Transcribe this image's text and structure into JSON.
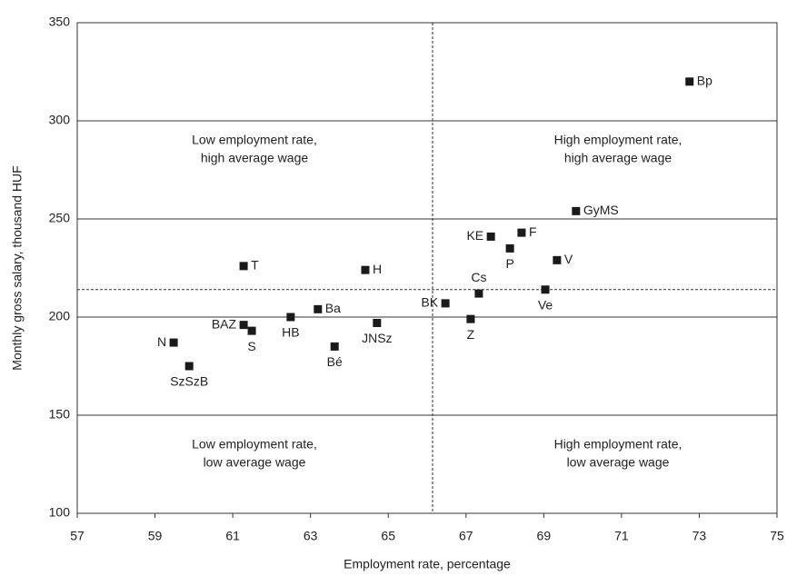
{
  "chart_data": {
    "type": "scatter",
    "x_label": "Employment rate, percentage",
    "y_label": "Monthly gross salary, thousand HUF",
    "point_labels": [
      "Bp",
      "GyMS",
      "KE",
      "F",
      "P",
      "V",
      "Cs",
      "Ve",
      "Z",
      "BK",
      "JNSz",
      "Bé",
      "Ba",
      "H",
      "HB",
      "T",
      "BAZ",
      "S",
      "N",
      "SzSzB"
    ],
    "x": [
      72.75,
      69.83,
      67.64,
      68.43,
      68.13,
      69.34,
      67.33,
      69.04,
      67.12,
      66.47,
      64.71,
      63.62,
      63.19,
      64.41,
      62.49,
      61.28,
      61.28,
      61.49,
      59.48,
      59.88
    ],
    "values": [
      320,
      254,
      241,
      243,
      235,
      229,
      212,
      214,
      199,
      207,
      197,
      185,
      204,
      224,
      200,
      226,
      196,
      193,
      187,
      175
    ],
    "color": "#1a1a1a",
    "xlim": [
      57,
      75
    ],
    "xticks": [
      57,
      59,
      61,
      63,
      65,
      67,
      69,
      71,
      73,
      75
    ],
    "ylim": [
      100,
      350
    ],
    "yticks": [
      100,
      150,
      200,
      250,
      300,
      350
    ],
    "grid": true,
    "vline": 66.14,
    "hline": 214,
    "quadrant_labels": [
      [
        "Low employment rate,",
        "high average wage"
      ],
      [
        "High employment rate,",
        "high average wage"
      ],
      [
        "Low employment rate,",
        "low average wage"
      ],
      [
        "High employment rate,",
        "low average wage"
      ]
    ]
  }
}
